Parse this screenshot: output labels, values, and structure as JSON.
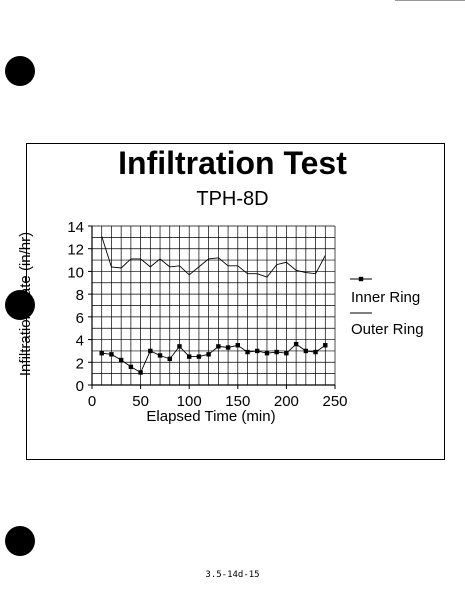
{
  "chart_data": {
    "type": "line",
    "title": "Infiltration Test",
    "subtitle": "TPH-8D",
    "xlabel": "Elapsed Time (min)",
    "ylabel": "Infiltration Rate (in/hr)",
    "xlim": [
      0,
      250
    ],
    "ylim": [
      0,
      14
    ],
    "xticks": [
      0,
      50,
      100,
      150,
      200,
      250
    ],
    "yticks": [
      0,
      2,
      4,
      6,
      8,
      10,
      12,
      14
    ],
    "grid": true,
    "legend_position": "right",
    "series": [
      {
        "name": "Inner Ring",
        "marker": "square",
        "color": "#000000",
        "x": [
          10,
          20,
          30,
          40,
          50,
          60,
          70,
          80,
          90,
          100,
          110,
          120,
          130,
          140,
          150,
          160,
          170,
          180,
          190,
          200,
          210,
          220,
          230,
          240
        ],
        "y": [
          2.8,
          2.7,
          2.2,
          1.6,
          1.1,
          3.0,
          2.6,
          2.3,
          3.4,
          2.5,
          2.5,
          2.7,
          3.4,
          3.3,
          3.5,
          2.9,
          3.0,
          2.8,
          2.9,
          2.8,
          3.6,
          3.0,
          2.9,
          3.5
        ]
      },
      {
        "name": "Outer Ring",
        "marker": "none",
        "color": "#000000",
        "x": [
          10,
          20,
          30,
          40,
          50,
          60,
          70,
          80,
          90,
          100,
          110,
          120,
          130,
          140,
          150,
          160,
          170,
          180,
          190,
          200,
          210,
          220,
          230,
          240
        ],
        "y": [
          13.1,
          10.4,
          10.3,
          11.1,
          11.1,
          10.4,
          11.1,
          10.4,
          10.5,
          9.7,
          10.4,
          11.1,
          11.2,
          10.5,
          10.5,
          9.8,
          9.8,
          9.5,
          10.6,
          10.8,
          10.1,
          9.9,
          9.8,
          11.4
        ]
      }
    ]
  },
  "footer": {
    "page_ref": "3.5-14d-15"
  }
}
